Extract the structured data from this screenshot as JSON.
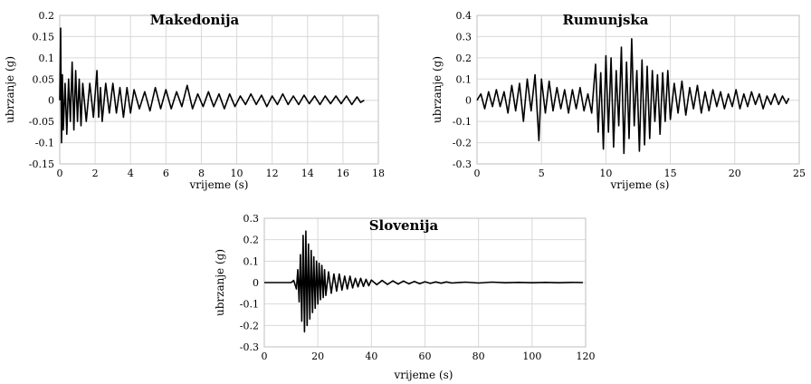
{
  "chart_data": [
    {
      "type": "line",
      "title": "Makedonija",
      "xlabel": "vrijeme (s)",
      "ylabel": "ubrzanje (g)",
      "xlim": [
        0,
        18
      ],
      "ylim": [
        -0.15,
        0.2
      ],
      "xticks": [
        0,
        2,
        4,
        6,
        8,
        10,
        12,
        14,
        16,
        18
      ],
      "xtick_labels": [
        "0",
        "2",
        "4",
        "6",
        "8",
        "10",
        "12",
        "14",
        "16",
        "18"
      ],
      "yticks": [
        0.2,
        0.15,
        0.1,
        0.05,
        0,
        -0.05,
        -0.1,
        -0.15
      ],
      "ytick_labels": [
        "0.2",
        "0.15",
        "0.1",
        "0.05",
        "0",
        "-0.05",
        "-0.1",
        "-0.15"
      ],
      "grid": true,
      "series": [
        {
          "color": "#000000",
          "x": [
            0,
            0.05,
            0.1,
            0.15,
            0.2,
            0.3,
            0.4,
            0.5,
            0.6,
            0.7,
            0.8,
            0.9,
            1.0,
            1.1,
            1.2,
            1.3,
            1.5,
            1.7,
            1.9,
            2.1,
            2.2,
            2.3,
            2.4,
            2.6,
            2.8,
            3.0,
            3.2,
            3.4,
            3.6,
            3.8,
            4.0,
            4.2,
            4.5,
            4.8,
            5.1,
            5.4,
            5.7,
            6.0,
            6.3,
            6.6,
            6.9,
            7.2,
            7.5,
            7.8,
            8.1,
            8.4,
            8.7,
            9.0,
            9.3,
            9.6,
            9.9,
            10.2,
            10.5,
            10.8,
            11.1,
            11.4,
            11.7,
            12.0,
            12.3,
            12.6,
            12.9,
            13.2,
            13.5,
            13.8,
            14.1,
            14.4,
            14.7,
            15.0,
            15.3,
            15.6,
            15.9,
            16.2,
            16.5,
            16.8,
            17.0,
            17.2
          ],
          "y": [
            0,
            0.17,
            -0.1,
            0.06,
            -0.07,
            0.04,
            -0.08,
            0.05,
            -0.05,
            0.09,
            -0.07,
            0.07,
            -0.05,
            0.05,
            -0.06,
            0.04,
            -0.05,
            0.04,
            -0.04,
            0.07,
            -0.04,
            0.03,
            -0.05,
            0.04,
            -0.03,
            0.04,
            -0.03,
            0.03,
            -0.04,
            0.03,
            -0.03,
            0.025,
            -0.02,
            0.02,
            -0.025,
            0.03,
            -0.02,
            0.025,
            -0.02,
            0.02,
            -0.015,
            0.035,
            -0.02,
            0.015,
            -0.015,
            0.02,
            -0.015,
            0.015,
            -0.02,
            0.015,
            -0.015,
            0.01,
            -0.01,
            0.015,
            -0.01,
            0.012,
            -0.015,
            0.01,
            -0.01,
            0.015,
            -0.01,
            0.01,
            -0.01,
            0.012,
            -0.008,
            0.01,
            -0.01,
            0.01,
            -0.008,
            0.01,
            -0.008,
            0.01,
            -0.01,
            0.008,
            -0.005,
            0
          ]
        }
      ]
    },
    {
      "type": "line",
      "title": "Rumunjska",
      "xlabel": "vrijeme (s)",
      "ylabel": "ubrzanje (g)",
      "xlim": [
        0,
        25
      ],
      "ylim": [
        -0.3,
        0.4
      ],
      "xticks": [
        0,
        5,
        10,
        15,
        20,
        25
      ],
      "xtick_labels": [
        "0",
        "5",
        "10",
        "15",
        "20",
        "25"
      ],
      "yticks": [
        0.4,
        0.3,
        0.2,
        0.1,
        0,
        -0.1,
        -0.2,
        -0.3
      ],
      "ytick_labels": [
        "0.4",
        "0.3",
        "0.2",
        "0.1",
        "0",
        "-0.1",
        "-0.2",
        "-0.3"
      ],
      "grid": true,
      "series": [
        {
          "color": "#000000",
          "x": [
            0,
            0.3,
            0.6,
            0.9,
            1.2,
            1.5,
            1.8,
            2.1,
            2.4,
            2.7,
            3.0,
            3.3,
            3.6,
            3.9,
            4.2,
            4.5,
            4.8,
            5.0,
            5.3,
            5.6,
            5.9,
            6.2,
            6.5,
            6.8,
            7.1,
            7.4,
            7.7,
            8.0,
            8.3,
            8.6,
            8.9,
            9.2,
            9.4,
            9.6,
            9.8,
            10.0,
            10.2,
            10.4,
            10.6,
            10.8,
            11.0,
            11.2,
            11.4,
            11.6,
            11.8,
            12.0,
            12.2,
            12.4,
            12.6,
            12.8,
            13.0,
            13.2,
            13.4,
            13.6,
            13.8,
            14.0,
            14.2,
            14.4,
            14.6,
            14.8,
            15.0,
            15.3,
            15.6,
            15.9,
            16.2,
            16.5,
            16.8,
            17.1,
            17.4,
            17.7,
            18.0,
            18.3,
            18.6,
            18.9,
            19.2,
            19.5,
            19.8,
            20.1,
            20.4,
            20.7,
            21.0,
            21.3,
            21.6,
            21.9,
            22.2,
            22.5,
            22.8,
            23.1,
            23.4,
            23.7,
            24.0,
            24.2
          ],
          "y": [
            0,
            0.03,
            -0.04,
            0.04,
            -0.03,
            0.05,
            -0.03,
            0.04,
            -0.06,
            0.07,
            -0.05,
            0.08,
            -0.1,
            0.1,
            -0.05,
            0.12,
            -0.19,
            0.1,
            -0.06,
            0.09,
            -0.05,
            0.06,
            -0.04,
            0.05,
            -0.06,
            0.05,
            -0.04,
            0.06,
            -0.05,
            0.03,
            -0.06,
            0.17,
            -0.15,
            0.13,
            -0.23,
            0.21,
            -0.15,
            0.2,
            -0.22,
            0.14,
            -0.12,
            0.25,
            -0.25,
            0.18,
            -0.18,
            0.29,
            -0.12,
            0.14,
            -0.24,
            0.19,
            -0.21,
            0.16,
            -0.18,
            0.14,
            -0.1,
            0.12,
            -0.16,
            0.13,
            -0.1,
            0.14,
            -0.09,
            0.08,
            -0.06,
            0.09,
            -0.07,
            0.06,
            -0.04,
            0.07,
            -0.06,
            0.04,
            -0.05,
            0.05,
            -0.03,
            0.04,
            -0.04,
            0.03,
            -0.03,
            0.05,
            -0.04,
            0.03,
            -0.03,
            0.04,
            -0.02,
            0.03,
            -0.04,
            0.02,
            -0.02,
            0.03,
            -0.02,
            0.02,
            -0.015,
            0.01
          ]
        }
      ]
    },
    {
      "type": "line",
      "title": "Slovenija",
      "xlabel": "vrijeme (s)",
      "ylabel": "ubrzanje (g)",
      "xlim": [
        0,
        120
      ],
      "ylim": [
        -0.3,
        0.3
      ],
      "xticks": [
        0,
        20,
        40,
        60,
        80,
        100,
        120
      ],
      "xtick_labels": [
        "0",
        "20",
        "40",
        "60",
        "80",
        "100",
        "120"
      ],
      "yticks": [
        0.3,
        0.2,
        0.1,
        0,
        -0.1,
        -0.2,
        -0.3
      ],
      "ytick_labels": [
        "0.3",
        "0.2",
        "0.1",
        "0",
        "-0.1",
        "-0.2",
        "-0.3"
      ],
      "grid": true,
      "series": [
        {
          "color": "#000000",
          "x": [
            0,
            10,
            11,
            12,
            12.5,
            13,
            13.5,
            14,
            14.5,
            15,
            15.5,
            16,
            16.5,
            17,
            17.5,
            18,
            18.5,
            19,
            19.5,
            20,
            20.5,
            21,
            21.5,
            22,
            22.5,
            23,
            24,
            25,
            26,
            27,
            28,
            29,
            30,
            31,
            32,
            33,
            34,
            35,
            36,
            37,
            38,
            39,
            40,
            42,
            44,
            46,
            48,
            50,
            52,
            54,
            56,
            58,
            60,
            62,
            64,
            66,
            68,
            70,
            75,
            80,
            85,
            90,
            95,
            100,
            105,
            110,
            115,
            119
          ],
          "y": [
            0,
            0,
            0.01,
            -0.03,
            0.06,
            -0.09,
            0.13,
            -0.18,
            0.22,
            -0.23,
            0.24,
            -0.2,
            0.18,
            -0.17,
            0.15,
            -0.14,
            0.12,
            -0.12,
            0.1,
            -0.1,
            0.09,
            -0.08,
            0.08,
            -0.07,
            0.06,
            -0.06,
            0.05,
            -0.05,
            0.04,
            -0.04,
            0.04,
            -0.035,
            0.03,
            -0.03,
            0.03,
            -0.025,
            0.02,
            -0.02,
            0.02,
            -0.018,
            0.015,
            -0.015,
            0.012,
            -0.01,
            0.01,
            -0.009,
            0.008,
            -0.007,
            0.007,
            -0.006,
            0.005,
            -0.005,
            0.004,
            -0.004,
            0.003,
            -0.003,
            0.003,
            -0.002,
            0.002,
            -0.002,
            0.002,
            -0.001,
            0.001,
            -0.001,
            0.001,
            -0.001,
            0.001,
            0
          ]
        }
      ]
    }
  ]
}
